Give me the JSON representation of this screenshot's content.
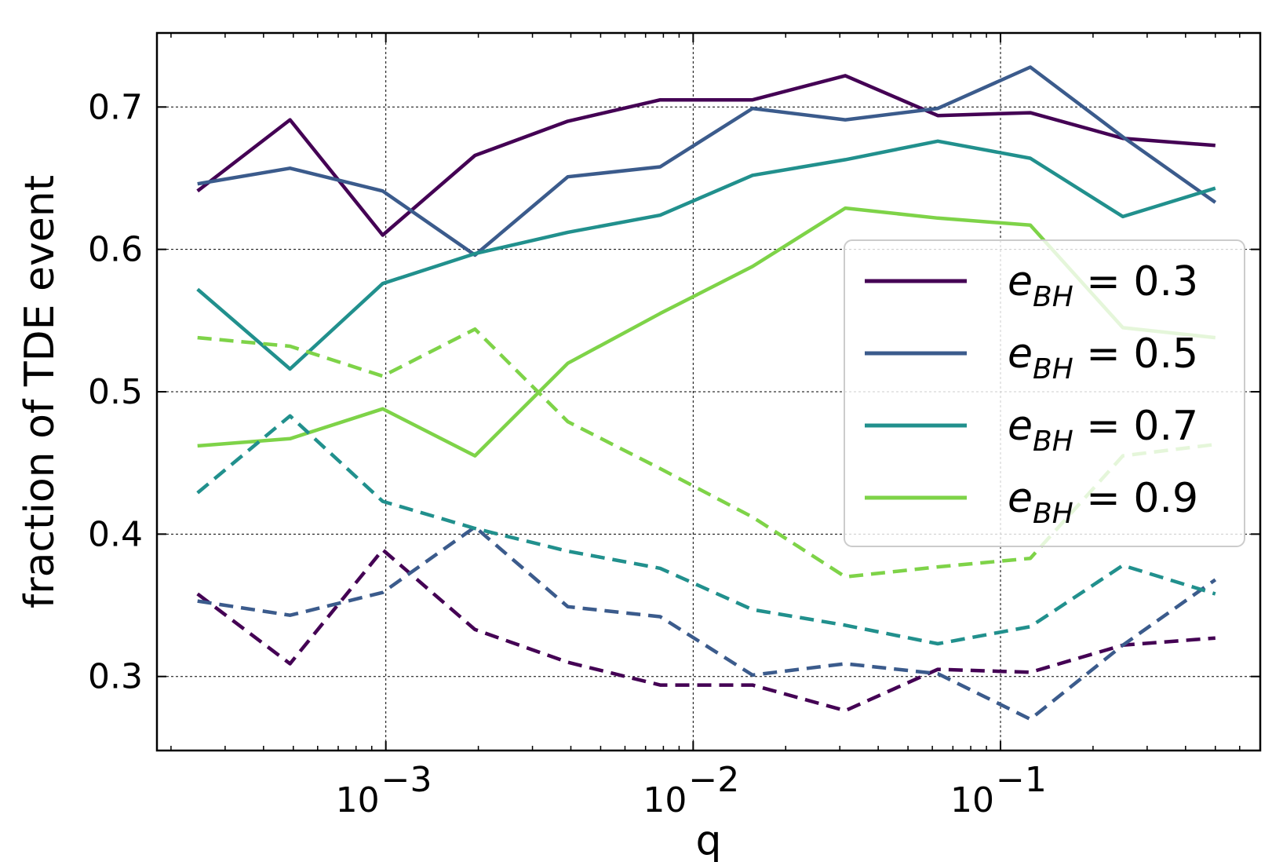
{
  "chart_data": {
    "type": "line",
    "xlabel": "q",
    "ylabel": "fraction of TDE event",
    "xscale": "log",
    "xlim": [
      0.00018,
      0.7
    ],
    "ylim": [
      0.248,
      0.752
    ],
    "xticks": [
      {
        "value": 0.001,
        "base": "10",
        "exp": "−3"
      },
      {
        "value": 0.01,
        "base": "10",
        "exp": "−2"
      },
      {
        "value": 0.1,
        "base": "10",
        "exp": "−1"
      }
    ],
    "yticks": [
      {
        "value": 0.3,
        "label": "0.3"
      },
      {
        "value": 0.4,
        "label": "0.4"
      },
      {
        "value": 0.5,
        "label": "0.5"
      },
      {
        "value": 0.6,
        "label": "0.6"
      },
      {
        "value": 0.7,
        "label": "0.7"
      }
    ],
    "grid": true,
    "legend_position": "right",
    "x": [
      0.000244,
      0.000488,
      0.000977,
      0.00195,
      0.00391,
      0.00781,
      0.0156,
      0.03125,
      0.0625,
      0.125,
      0.25,
      0.5
    ],
    "series": [
      {
        "name": "e_BH = 0.3",
        "color": "#440154",
        "style": "solid",
        "values": [
          0.641,
          0.691,
          0.61,
          0.666,
          0.69,
          0.705,
          0.705,
          0.722,
          0.694,
          0.696,
          0.678,
          0.673
        ]
      },
      {
        "name": "e_BH = 0.5",
        "color": "#3b5b8c",
        "style": "solid",
        "values": [
          0.646,
          0.657,
          0.641,
          0.596,
          0.651,
          0.658,
          0.699,
          0.691,
          0.699,
          0.728,
          0.679,
          0.633
        ]
      },
      {
        "name": "e_BH = 0.7",
        "color": "#21908d",
        "style": "solid",
        "values": [
          0.572,
          0.516,
          0.576,
          0.597,
          0.612,
          0.624,
          0.652,
          0.663,
          0.676,
          0.664,
          0.623,
          0.643
        ]
      },
      {
        "name": "e_BH = 0.9",
        "color": "#7ed348",
        "style": "solid",
        "values": [
          0.462,
          0.467,
          0.488,
          0.455,
          0.52,
          0.555,
          0.588,
          0.629,
          0.622,
          0.617,
          0.545,
          0.538
        ]
      },
      {
        "color": "#440154",
        "style": "dashed",
        "values": [
          0.358,
          0.309,
          0.389,
          0.333,
          0.31,
          0.294,
          0.294,
          0.276,
          0.305,
          0.303,
          0.322,
          0.327
        ]
      },
      {
        "color": "#3b5b8c",
        "style": "dashed",
        "values": [
          0.353,
          0.343,
          0.359,
          0.405,
          0.349,
          0.342,
          0.301,
          0.309,
          0.302,
          0.27,
          0.322,
          0.368
        ]
      },
      {
        "color": "#21908d",
        "style": "dashed",
        "values": [
          0.429,
          0.483,
          0.423,
          0.404,
          0.388,
          0.376,
          0.347,
          0.336,
          0.323,
          0.335,
          0.378,
          0.358
        ]
      },
      {
        "color": "#7ed348",
        "style": "dashed",
        "values": [
          0.538,
          0.532,
          0.511,
          0.544,
          0.479,
          0.446,
          0.412,
          0.37,
          0.377,
          0.383,
          0.455,
          0.463
        ]
      }
    ],
    "legend": [
      {
        "label": "e_BH = 0.3",
        "color": "#440154",
        "sym": "e",
        "sub": "BH",
        "rest": " = 0.3"
      },
      {
        "label": "e_BH = 0.5",
        "color": "#3b5b8c",
        "sym": "e",
        "sub": "BH",
        "rest": " = 0.5"
      },
      {
        "label": "e_BH = 0.7",
        "color": "#21908d",
        "sym": "e",
        "sub": "BH",
        "rest": " = 0.7"
      },
      {
        "label": "e_BH = 0.9",
        "color": "#7ed348",
        "sym": "e",
        "sub": "BH",
        "rest": " = 0.9"
      }
    ]
  }
}
